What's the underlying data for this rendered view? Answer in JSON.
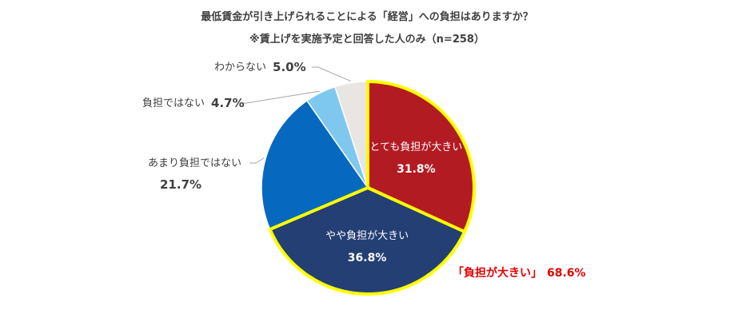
{
  "chart_data": {
    "type": "pie",
    "title": "最低賃金が引き上げられることによる「経営」への負担はありますか？",
    "subtitle": "※賃上げを実施予定と回答した人のみ（n=258）",
    "slices": [
      {
        "label": "とても負担が大きい",
        "value": 31.8,
        "value_label": "31.8%",
        "color": "#b31b23",
        "highlighted": true,
        "label_position": "inside"
      },
      {
        "label": "やや負担が大きい",
        "value": 36.8,
        "value_label": "36.8%",
        "color": "#243f73",
        "highlighted": true,
        "label_position": "inside"
      },
      {
        "label": "あまり負担ではない",
        "value": 21.7,
        "value_label": "21.7%",
        "color": "#0669bf",
        "highlighted": false,
        "label_position": "outside"
      },
      {
        "label": "負担ではない",
        "value": 4.7,
        "value_label": "4.7%",
        "color": "#7ec8f0",
        "highlighted": false,
        "label_position": "outside"
      },
      {
        "label": "わからない",
        "value": 5.0,
        "value_label": "5.0%",
        "color": "#e9e5e2",
        "highlighted": false,
        "label_position": "outside"
      }
    ],
    "start_angle_deg": 0,
    "direction": "clockwise",
    "highlight_color": "#ffff00",
    "summary": {
      "label": "「負担が大きい」",
      "value_label": "68.6%",
      "color": "#e00000"
    }
  }
}
